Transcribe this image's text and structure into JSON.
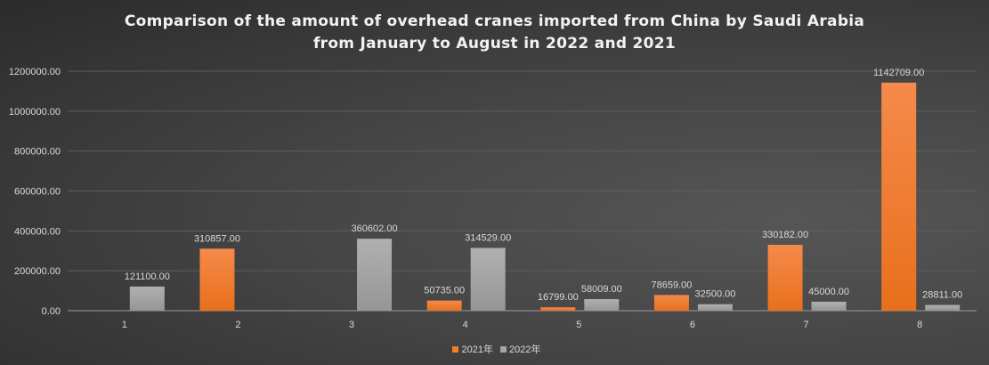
{
  "chart_data": {
    "type": "bar",
    "title_lines": [
      "Comparison of the amount of overhead cranes imported from China by Saudi Arabia",
      "from January to August in 2022 and 2021"
    ],
    "categories": [
      "1",
      "2",
      "3",
      "4",
      "5",
      "6",
      "7",
      "8"
    ],
    "series": [
      {
        "name": "2021年",
        "color": "#f07f2a",
        "values": [
          null,
          310857.0,
          null,
          50735.0,
          16799.0,
          78659.0,
          330182.0,
          1142709.0
        ]
      },
      {
        "name": "2022年",
        "color": "#a6a6a6",
        "values": [
          121100.0,
          null,
          360602.0,
          314529.0,
          58009.0,
          32500.0,
          45000.0,
          28811.0
        ]
      }
    ],
    "data_labels": [
      [
        null,
        "310857.00",
        null,
        "50735.00",
        "16799.00",
        "78659.00",
        "330182.00",
        "1142709.00"
      ],
      [
        "121100.00",
        null,
        "360602.00",
        "314529.00",
        "58009.00",
        "32500.00",
        "45000.00",
        "28811.00"
      ]
    ],
    "yticks": [
      "0.00",
      "200000.00",
      "400000.00",
      "600000.00",
      "800000.00",
      "1000000.00",
      "1200000.00"
    ],
    "ylim": [
      0,
      1200000
    ],
    "grid": true,
    "legend": "bottom"
  }
}
